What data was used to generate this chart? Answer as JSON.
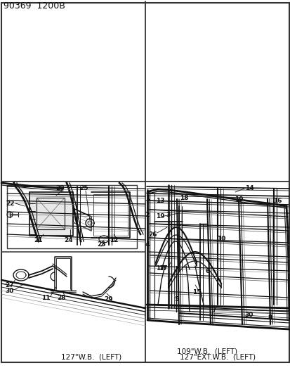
{
  "title": "90369  1200B",
  "panel_label_109": "109\"W.B.  (LEFT)",
  "panel_label_127": "127\"W.B.  (LEFT)",
  "panel_label_127ext": "127\"EXT.W.B.  (LEFT)",
  "bg": "#f0f0f0",
  "fg": "#111111",
  "fig_w": 4.14,
  "fig_h": 5.33,
  "dpi": 100
}
